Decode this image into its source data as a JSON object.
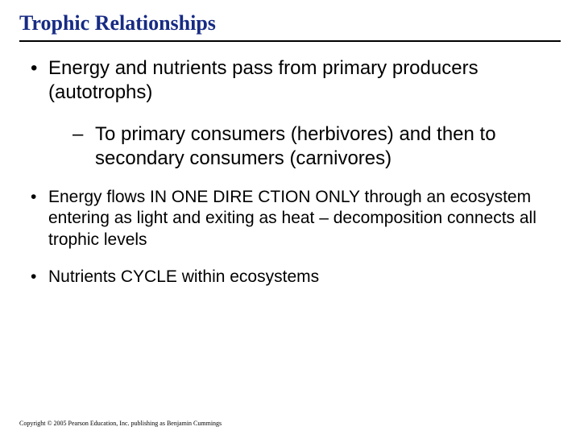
{
  "title": "Trophic Relationships",
  "title_color": "#172b84",
  "title_fontsize": 26,
  "underline_color": "#000000",
  "body_color": "#000000",
  "background_color": "#ffffff",
  "bullets": {
    "b1": {
      "text": "Energy and nutrients pass from primary producers (autotrophs)",
      "fontsize": 24,
      "sub": {
        "s1": {
          "text": "To primary consumers (herbivores) and then to secondary consumers (carnivores)",
          "fontsize": 24
        }
      }
    },
    "b2": {
      "text": "Energy flows IN ONE DIRE CTION ONLY through an ecosystem entering as light and exiting as heat – decomposition connects all trophic levels",
      "fontsize": 21
    },
    "b3": {
      "text": "Nutrients CYCLE within ecosystems",
      "fontsize": 21
    }
  },
  "footer": "Copyright © 2005 Pearson Education, Inc. publishing as Benjamin Cummings",
  "footer_fontsize": 8
}
